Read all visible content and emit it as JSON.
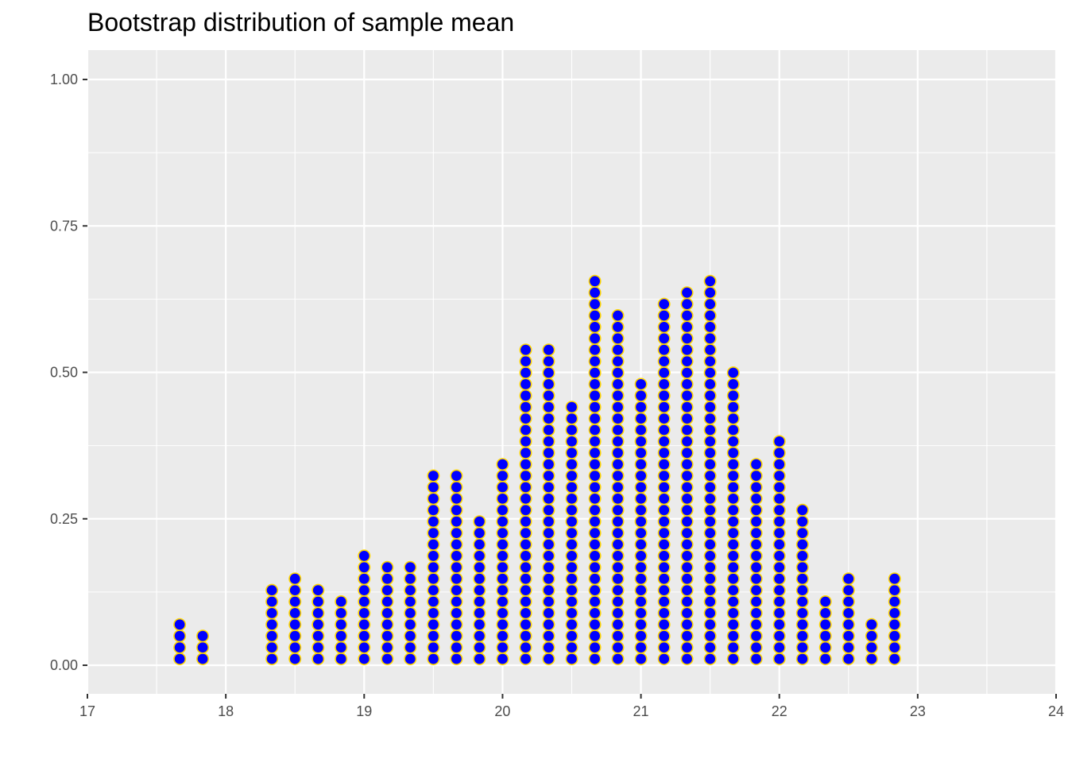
{
  "chart_data": {
    "type": "dotplot",
    "title": "Bootstrap distribution of sample mean",
    "xlabel": "",
    "ylabel": "",
    "xlim": [
      17,
      24
    ],
    "ylim": [
      -0.045,
      1.045
    ],
    "x_ticks": [
      "17",
      "18",
      "19",
      "20",
      "21",
      "22",
      "23",
      "24"
    ],
    "y_ticks": [
      "0.00",
      "0.25",
      "0.50",
      "0.75",
      "1.00"
    ],
    "grid": true,
    "panel_background": "#ebebeb",
    "grid_color": "#ffffff",
    "dot_fill": "#0000ff",
    "dot_stroke": "#ffd700",
    "points": [
      {
        "x": 17.667,
        "count": 4
      },
      {
        "x": 17.833,
        "count": 3
      },
      {
        "x": 18.333,
        "count": 7
      },
      {
        "x": 18.5,
        "count": 8
      },
      {
        "x": 18.667,
        "count": 7
      },
      {
        "x": 18.833,
        "count": 6
      },
      {
        "x": 19.0,
        "count": 10
      },
      {
        "x": 19.167,
        "count": 9
      },
      {
        "x": 19.333,
        "count": 9
      },
      {
        "x": 19.5,
        "count": 17
      },
      {
        "x": 19.667,
        "count": 17
      },
      {
        "x": 19.833,
        "count": 13
      },
      {
        "x": 20.0,
        "count": 18
      },
      {
        "x": 20.167,
        "count": 28
      },
      {
        "x": 20.333,
        "count": 28
      },
      {
        "x": 20.5,
        "count": 23
      },
      {
        "x": 20.667,
        "count": 34
      },
      {
        "x": 20.833,
        "count": 31
      },
      {
        "x": 21.0,
        "count": 25
      },
      {
        "x": 21.167,
        "count": 32
      },
      {
        "x": 21.333,
        "count": 33
      },
      {
        "x": 21.5,
        "count": 34
      },
      {
        "x": 21.667,
        "count": 26
      },
      {
        "x": 21.833,
        "count": 18
      },
      {
        "x": 22.0,
        "count": 20
      },
      {
        "x": 22.167,
        "count": 14
      },
      {
        "x": 22.333,
        "count": 6
      },
      {
        "x": 22.5,
        "count": 8
      },
      {
        "x": 22.667,
        "count": 4
      },
      {
        "x": 22.833,
        "count": 8
      }
    ]
  }
}
